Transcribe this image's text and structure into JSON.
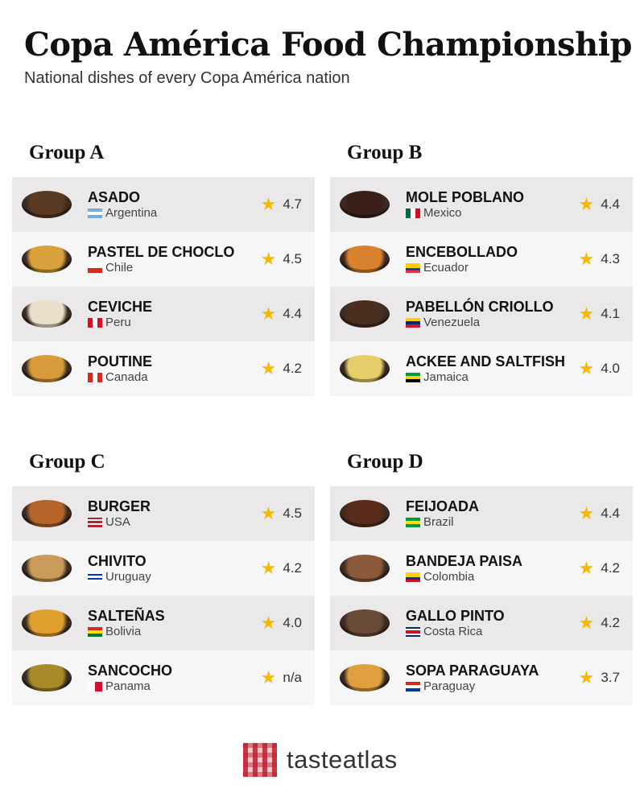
{
  "title": "Copa América Food Championship",
  "subtitle": "National dishes of every Copa América nation",
  "star_color": "#f5b800",
  "groups": [
    {
      "title": "Group A",
      "items": [
        {
          "dish": "ASADO",
          "country": "Argentina",
          "rating": "4.7",
          "dish_color": "#5a3a22",
          "flag": {
            "dir": "h",
            "colors": [
              "#74acdf",
              "#ffffff",
              "#74acdf"
            ]
          }
        },
        {
          "dish": "PASTEL DE CHOCLO",
          "country": "Chile",
          "rating": "4.5",
          "dish_color": "#d9a13a",
          "flag": {
            "dir": "h",
            "colors": [
              "#ffffff",
              "#d52b1e"
            ]
          }
        },
        {
          "dish": "CEVICHE",
          "country": "Peru",
          "rating": "4.4",
          "dish_color": "#e8e0c8",
          "flag": {
            "dir": "v",
            "colors": [
              "#d91023",
              "#ffffff",
              "#d91023"
            ]
          }
        },
        {
          "dish": "POUTINE",
          "country": "Canada",
          "rating": "4.2",
          "dish_color": "#d99a3c",
          "flag": {
            "dir": "v",
            "colors": [
              "#d52b1e",
              "#ffffff",
              "#d52b1e"
            ]
          }
        }
      ]
    },
    {
      "title": "Group B",
      "items": [
        {
          "dish": "MOLE POBLANO",
          "country": "Mexico",
          "rating": "4.4",
          "dish_color": "#3a1e18",
          "flag": {
            "dir": "v",
            "colors": [
              "#006847",
              "#ffffff",
              "#ce1126"
            ]
          }
        },
        {
          "dish": "ENCEBOLLADO",
          "country": "Ecuador",
          "rating": "4.3",
          "dish_color": "#d8822e",
          "flag": {
            "dir": "h",
            "colors": [
              "#ffd100",
              "#ffd100",
              "#034ea2",
              "#ef3340"
            ]
          }
        },
        {
          "dish": "PABELLÓN CRIOLLO",
          "country": "Venezuela",
          "rating": "4.1",
          "dish_color": "#4a2e20",
          "flag": {
            "dir": "h",
            "colors": [
              "#ffcc00",
              "#00247d",
              "#cf142b"
            ]
          }
        },
        {
          "dish": "ACKEE AND SALTFISH",
          "country": "Jamaica",
          "rating": "4.0",
          "dish_color": "#e6cf6a",
          "flag": {
            "dir": "h",
            "colors": [
              "#009b3a",
              "#fed100",
              "#000000"
            ]
          }
        }
      ]
    },
    {
      "title": "Group C",
      "items": [
        {
          "dish": "BURGER",
          "country": "USA",
          "rating": "4.5",
          "dish_color": "#b5652a",
          "flag": {
            "dir": "h",
            "colors": [
              "#b22234",
              "#ffffff",
              "#b22234",
              "#ffffff",
              "#b22234"
            ]
          }
        },
        {
          "dish": "CHIVITO",
          "country": "Uruguay",
          "rating": "4.2",
          "dish_color": "#c99a5a",
          "flag": {
            "dir": "h",
            "colors": [
              "#ffffff",
              "#0038a8",
              "#ffffff",
              "#0038a8",
              "#ffffff"
            ]
          }
        },
        {
          "dish": "SALTEÑAS",
          "country": "Bolivia",
          "rating": "4.0",
          "dish_color": "#e0a030",
          "flag": {
            "dir": "h",
            "colors": [
              "#d52b1e",
              "#f9e300",
              "#007934"
            ]
          }
        },
        {
          "dish": "SANCOCHO",
          "country": "Panama",
          "rating": "n/a",
          "dish_color": "#a88a2a",
          "flag": {
            "dir": "v",
            "colors": [
              "#ffffff",
              "#d21034"
            ]
          }
        }
      ]
    },
    {
      "title": "Group D",
      "items": [
        {
          "dish": "FEIJOADA",
          "country": "Brazil",
          "rating": "4.4",
          "dish_color": "#5a2a1a",
          "flag": {
            "dir": "h",
            "colors": [
              "#009c3b",
              "#ffdf00",
              "#009c3b"
            ]
          }
        },
        {
          "dish": "BANDEJA PAISA",
          "country": "Colombia",
          "rating": "4.2",
          "dish_color": "#8a5a3a",
          "flag": {
            "dir": "h",
            "colors": [
              "#fcd116",
              "#fcd116",
              "#003893",
              "#ce1126"
            ]
          }
        },
        {
          "dish": "GALLO PINTO",
          "country": "Costa Rica",
          "rating": "4.2",
          "dish_color": "#6a4a38",
          "flag": {
            "dir": "h",
            "colors": [
              "#002b7f",
              "#ffffff",
              "#ce1126",
              "#ce1126",
              "#ffffff",
              "#002b7f"
            ]
          }
        },
        {
          "dish": "SOPA PARAGUAYA",
          "country": "Paraguay",
          "rating": "3.7",
          "dish_color": "#e0a040",
          "flag": {
            "dir": "h",
            "colors": [
              "#d52b1e",
              "#ffffff",
              "#0038a8"
            ]
          }
        }
      ]
    }
  ],
  "logo": {
    "text": "tasteatlas"
  }
}
